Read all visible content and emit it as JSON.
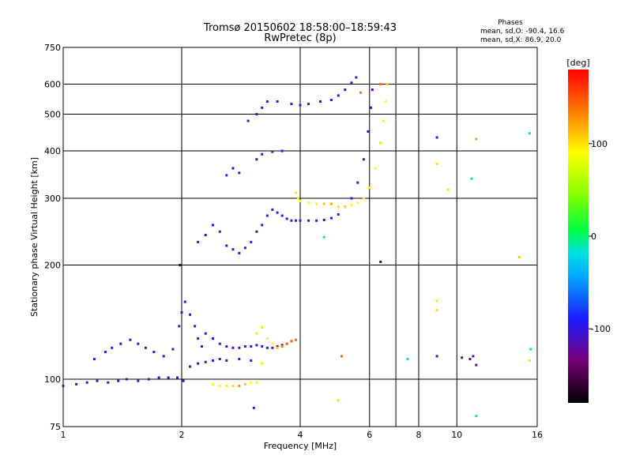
{
  "header": {
    "title_line1": "Tromsø 20150602 18:58:00–18:59:43",
    "title_line2": "RwPretec (8p)"
  },
  "info_box": {
    "heading": "Phases",
    "line_o": "mean, sd,O: -90.4, 16.6",
    "line_x": "mean, sd,X: 86.9, 20.0"
  },
  "colorbar": {
    "unit": "deg",
    "min": -180,
    "max": 180,
    "ticks": [
      100,
      0,
      -100
    ],
    "tick_labels": [
      "100",
      "0",
      "-100"
    ]
  },
  "chart_data": {
    "type": "scatter",
    "title": "Tromsø 20150602 18:58:00–18:59:43",
    "subtitle": "RwPretec (8p)",
    "xlabel": "Frequency [MHz]",
    "ylabel": "Stationary phase Virtual Height [km]",
    "xscale": "log",
    "yscale": "log",
    "xlim": [
      1,
      16
    ],
    "ylim": [
      75,
      750
    ],
    "xticks": [
      1,
      2,
      4,
      6,
      8,
      10,
      16
    ],
    "xtick_labels": [
      "1",
      "2",
      "4",
      "6",
      "8",
      "10",
      "16"
    ],
    "yticks": [
      75,
      100,
      200,
      300,
      400,
      500,
      600,
      750
    ],
    "ytick_labels": [
      "75",
      "100",
      "200",
      "300",
      "400",
      "500",
      "600",
      "750"
    ],
    "xgrid": [
      2,
      4,
      6,
      7,
      8,
      10
    ],
    "ygrid": [
      100,
      200,
      300,
      400,
      500,
      600
    ],
    "color_variable": "phase [deg]",
    "points": [
      [
        1.0,
        96,
        -110
      ],
      [
        1.08,
        97,
        -105
      ],
      [
        1.15,
        98,
        -100
      ],
      [
        1.22,
        99,
        -110
      ],
      [
        1.3,
        98,
        -105
      ],
      [
        1.38,
        99,
        -100
      ],
      [
        1.45,
        100,
        -110
      ],
      [
        1.55,
        99,
        -105
      ],
      [
        1.65,
        100,
        -100
      ],
      [
        1.75,
        101,
        -110
      ],
      [
        1.85,
        101,
        -105
      ],
      [
        1.95,
        101,
        -100
      ],
      [
        2.02,
        99,
        -105
      ],
      [
        1.2,
        113,
        -100
      ],
      [
        1.28,
        118,
        -95
      ],
      [
        1.33,
        121,
        -100
      ],
      [
        1.4,
        124,
        -105
      ],
      [
        1.48,
        127,
        -100
      ],
      [
        1.55,
        124,
        -95
      ],
      [
        1.62,
        121,
        -100
      ],
      [
        1.7,
        118,
        -100
      ],
      [
        1.8,
        115,
        -105
      ],
      [
        1.9,
        120,
        -100
      ],
      [
        1.97,
        138,
        -100
      ],
      [
        2.0,
        150,
        -95
      ],
      [
        2.04,
        160,
        -100
      ],
      [
        2.1,
        148,
        -105
      ],
      [
        2.16,
        138,
        -100
      ],
      [
        2.2,
        128,
        -100
      ],
      [
        2.25,
        122,
        -105
      ],
      [
        2.3,
        132,
        -100
      ],
      [
        2.4,
        128,
        -95
      ],
      [
        2.5,
        124,
        -100
      ],
      [
        2.6,
        122,
        -105
      ],
      [
        2.7,
        121,
        -100
      ],
      [
        2.8,
        121,
        -100
      ],
      [
        2.9,
        122,
        -105
      ],
      [
        3.0,
        122,
        -100
      ],
      [
        3.1,
        123,
        -100
      ],
      [
        3.2,
        122,
        -95
      ],
      [
        3.3,
        121,
        -100
      ],
      [
        3.4,
        121,
        -100
      ],
      [
        3.5,
        122,
        -105
      ],
      [
        3.6,
        123,
        -100
      ],
      [
        2.1,
        108,
        -100
      ],
      [
        2.2,
        110,
        -105
      ],
      [
        2.3,
        111,
        -100
      ],
      [
        2.4,
        112,
        -100
      ],
      [
        2.5,
        113,
        -95
      ],
      [
        2.6,
        112,
        -100
      ],
      [
        2.8,
        113,
        -100
      ],
      [
        3.0,
        112,
        -105
      ],
      [
        3.1,
        132,
        70
      ],
      [
        3.2,
        137,
        75
      ],
      [
        3.3,
        128,
        80
      ],
      [
        3.4,
        124,
        90
      ],
      [
        3.5,
        121,
        110
      ],
      [
        3.6,
        122,
        130
      ],
      [
        3.7,
        124,
        150
      ],
      [
        3.8,
        126,
        150
      ],
      [
        3.9,
        127,
        140
      ],
      [
        2.4,
        97,
        85
      ],
      [
        2.5,
        96,
        90
      ],
      [
        2.6,
        96,
        95
      ],
      [
        2.7,
        96,
        100
      ],
      [
        2.8,
        96,
        130
      ],
      [
        2.9,
        97,
        110
      ],
      [
        3.0,
        98,
        90
      ],
      [
        3.1,
        98,
        85
      ],
      [
        3.2,
        110,
        80
      ],
      [
        2.2,
        230,
        -95
      ],
      [
        2.3,
        240,
        -100
      ],
      [
        2.4,
        255,
        -95
      ],
      [
        2.5,
        245,
        -100
      ],
      [
        2.6,
        225,
        -105
      ],
      [
        2.7,
        220,
        -100
      ],
      [
        2.8,
        215,
        -100
      ],
      [
        2.9,
        222,
        -95
      ],
      [
        3.0,
        230,
        -100
      ],
      [
        3.1,
        245,
        -100
      ],
      [
        3.2,
        255,
        -105
      ],
      [
        3.3,
        270,
        -100
      ],
      [
        3.4,
        280,
        -105
      ],
      [
        3.5,
        275,
        -100
      ],
      [
        3.6,
        270,
        -100
      ],
      [
        3.7,
        265,
        -105
      ],
      [
        3.8,
        262,
        -100
      ],
      [
        3.9,
        262,
        -100
      ],
      [
        4.0,
        262,
        -105
      ],
      [
        4.2,
        262,
        -100
      ],
      [
        4.4,
        262,
        -100
      ],
      [
        4.6,
        263,
        -105
      ],
      [
        4.8,
        266,
        -100
      ],
      [
        5.0,
        272,
        -105
      ],
      [
        5.2,
        285,
        -100
      ],
      [
        5.4,
        300,
        -100
      ],
      [
        5.6,
        330,
        -105
      ],
      [
        5.8,
        380,
        -100
      ],
      [
        5.95,
        450,
        -110
      ],
      [
        6.05,
        520,
        -115
      ],
      [
        6.1,
        580,
        -120
      ],
      [
        3.9,
        310,
        80
      ],
      [
        3.95,
        300,
        90
      ],
      [
        4.0,
        295,
        85
      ],
      [
        4.2,
        292,
        90
      ],
      [
        4.4,
        290,
        95
      ],
      [
        4.6,
        290,
        110
      ],
      [
        4.8,
        290,
        120
      ],
      [
        5.0,
        285,
        100
      ],
      [
        5.2,
        285,
        95
      ],
      [
        5.4,
        288,
        90
      ],
      [
        5.6,
        292,
        85
      ],
      [
        5.8,
        300,
        90
      ],
      [
        6.0,
        320,
        95
      ],
      [
        6.2,
        360,
        90
      ],
      [
        6.4,
        420,
        100
      ],
      [
        6.5,
        480,
        95
      ],
      [
        6.6,
        540,
        90
      ],
      [
        6.65,
        600,
        100
      ],
      [
        2.6,
        345,
        -100
      ],
      [
        2.7,
        360,
        -95
      ],
      [
        2.8,
        350,
        -100
      ],
      [
        3.1,
        380,
        -100
      ],
      [
        3.2,
        392,
        -105
      ],
      [
        3.4,
        398,
        -100
      ],
      [
        3.6,
        400,
        -100
      ],
      [
        2.95,
        480,
        -105
      ],
      [
        3.1,
        500,
        -100
      ],
      [
        3.2,
        520,
        -100
      ],
      [
        3.3,
        540,
        -95
      ],
      [
        3.5,
        540,
        -100
      ],
      [
        3.8,
        532,
        -105
      ],
      [
        4.0,
        528,
        -100
      ],
      [
        4.2,
        532,
        -100
      ],
      [
        4.5,
        540,
        -95
      ],
      [
        4.8,
        545,
        -100
      ],
      [
        5.0,
        560,
        -100
      ],
      [
        5.2,
        580,
        -105
      ],
      [
        5.4,
        605,
        -100
      ],
      [
        5.55,
        625,
        -100
      ],
      [
        1.98,
        200,
        -150
      ],
      [
        5.7,
        570,
        140
      ],
      [
        6.4,
        600,
        140
      ],
      [
        6.4,
        204,
        -150
      ],
      [
        5.1,
        115,
        140
      ],
      [
        4.6,
        237,
        -20
      ],
      [
        7.5,
        113,
        -20
      ],
      [
        8.9,
        434,
        -100
      ],
      [
        8.9,
        370,
        100
      ],
      [
        8.9,
        161,
        100
      ],
      [
        8.9,
        152,
        100
      ],
      [
        8.9,
        115,
        -110
      ],
      [
        9.5,
        316,
        100
      ],
      [
        10.3,
        114,
        -140
      ],
      [
        10.8,
        113,
        -140
      ],
      [
        11.0,
        115,
        -100
      ],
      [
        11.2,
        109,
        -120
      ],
      [
        10.9,
        338,
        -20
      ],
      [
        11.2,
        430,
        120
      ],
      [
        14.4,
        210,
        110
      ],
      [
        15.3,
        445,
        -10
      ],
      [
        15.3,
        112,
        100
      ],
      [
        15.4,
        120,
        -20
      ],
      [
        5.0,
        88,
        100
      ],
      [
        3.05,
        84,
        -100
      ],
      [
        11.2,
        80,
        -20
      ]
    ]
  }
}
